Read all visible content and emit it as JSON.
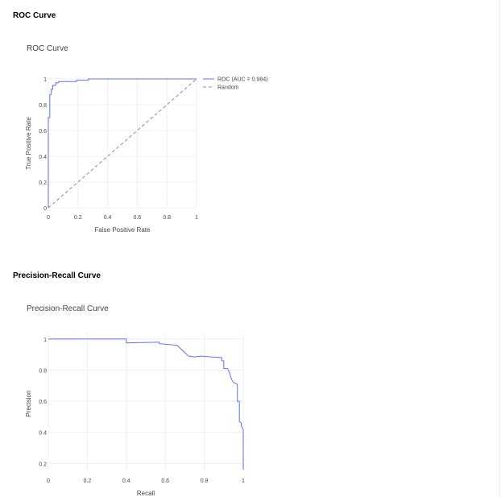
{
  "sections": {
    "roc_heading": "ROC Curve",
    "pr_heading": "Precision-Recall Curve"
  },
  "colors": {
    "line": "#636efa",
    "random": "#8c8c8c",
    "grid": "#eef0f5"
  },
  "chart_data": [
    {
      "type": "line",
      "title": "ROC Curve",
      "xlabel": "False Positive Rate",
      "ylabel": "True Positive Rate",
      "xlim": [
        0,
        1
      ],
      "ylim": [
        0,
        1
      ],
      "xticks": [
        "0",
        "0.2",
        "0.4",
        "0.6",
        "0.8",
        "1"
      ],
      "yticks": [
        "0",
        "0.2",
        "0.4",
        "0.6",
        "0.8",
        "1"
      ],
      "grid": true,
      "legend": "top-right",
      "series": [
        {
          "name": "ROC (AUC = 0.984)",
          "style": "solid",
          "x": [
            0,
            0,
            0.01,
            0.01,
            0.02,
            0.02,
            0.03,
            0.03,
            0.05,
            0.05,
            0.07,
            0.07,
            0.1,
            0.19,
            0.19,
            0.27,
            0.27,
            1.0
          ],
          "y": [
            0,
            0.7,
            0.7,
            0.88,
            0.88,
            0.92,
            0.92,
            0.95,
            0.95,
            0.97,
            0.97,
            0.98,
            0.98,
            0.98,
            0.99,
            0.99,
            1.0,
            1.0
          ]
        },
        {
          "name": "Random",
          "style": "dashed",
          "x": [
            0,
            1
          ],
          "y": [
            0,
            1
          ]
        }
      ]
    },
    {
      "type": "line",
      "title": "Precision-Recall Curve",
      "xlabel": "Recall",
      "ylabel": "Precision",
      "xlim": [
        0,
        1
      ],
      "ylim": [
        0.15,
        1.02
      ],
      "xticks": [
        "0",
        "0.2",
        "0.4",
        "0.6",
        "0.8",
        "1"
      ],
      "yticks": [
        "0.2",
        "0.4",
        "0.6",
        "0.8",
        "1"
      ],
      "grid": true,
      "series": [
        {
          "name": "",
          "style": "solid",
          "x": [
            0,
            0.4,
            0.4,
            0.57,
            0.57,
            0.66,
            0.72,
            0.75,
            0.78,
            0.84,
            0.89,
            0.89,
            0.9,
            0.9,
            0.92,
            0.93,
            0.94,
            0.95,
            0.97,
            0.97,
            0.98,
            0.98,
            0.99,
            0.99,
            1.0,
            1.0
          ],
          "y": [
            1.0,
            1.0,
            0.975,
            0.98,
            0.97,
            0.96,
            0.89,
            0.885,
            0.89,
            0.885,
            0.88,
            0.86,
            0.86,
            0.81,
            0.81,
            0.78,
            0.74,
            0.72,
            0.71,
            0.6,
            0.6,
            0.47,
            0.46,
            0.44,
            0.42,
            0.16
          ]
        }
      ]
    }
  ]
}
